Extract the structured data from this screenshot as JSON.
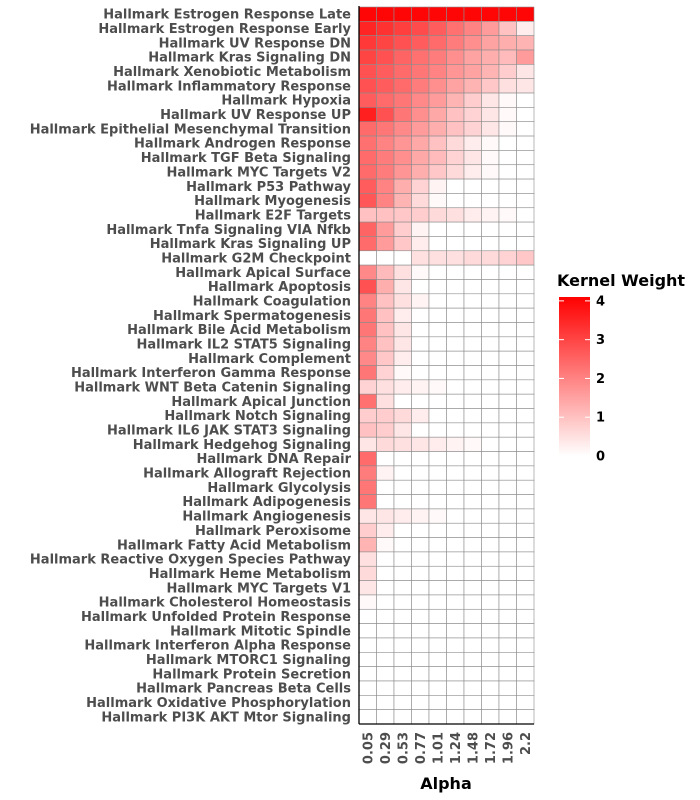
{
  "chart_data": {
    "type": "heatmap",
    "xlabel": "Alpha",
    "x": [
      "0.05",
      "0.29",
      "0.53",
      "0.77",
      "1.01",
      "1.24",
      "1.48",
      "1.72",
      "1.96",
      "2.2"
    ],
    "y": [
      "Hallmark Estrogen Response Late",
      "Hallmark Estrogen Response Early",
      "Hallmark UV Response DN",
      "Hallmark Kras Signaling DN",
      "Hallmark Xenobiotic Metabolism",
      "Hallmark Inflammatory Response",
      "Hallmark Hypoxia",
      "Hallmark UV Response UP",
      "Hallmark Epithelial Mesenchymal Transition",
      "Hallmark Androgen Response",
      "Hallmark TGF Beta Signaling",
      "Hallmark MYC Targets V2",
      "Hallmark P53 Pathway",
      "Hallmark Myogenesis",
      "Hallmark E2F Targets",
      "Hallmark Tnfa Signaling VIA Nfkb",
      "Hallmark Kras Signaling UP",
      "Hallmark G2M Checkpoint",
      "Hallmark Apical Surface",
      "Hallmark Apoptosis",
      "Hallmark Coagulation",
      "Hallmark Spermatogenesis",
      "Hallmark Bile Acid Metabolism",
      "Hallmark IL2 STAT5 Signaling",
      "Hallmark Complement",
      "Hallmark Interferon Gamma Response",
      "Hallmark WNT Beta Catenin Signaling",
      "Hallmark Apical Junction",
      "Hallmark Notch Signaling",
      "Hallmark IL6 JAK STAT3 Signaling",
      "Hallmark Hedgehog Signaling",
      "Hallmark DNA Repair",
      "Hallmark Allograft Rejection",
      "Hallmark Glycolysis",
      "Hallmark Adipogenesis",
      "Hallmark Angiogenesis",
      "Hallmark Peroxisome",
      "Hallmark Fatty Acid Metabolism",
      "Hallmark Reactive Oxygen Species Pathway",
      "Hallmark Heme Metabolism",
      "Hallmark MYC Targets V1",
      "Hallmark Cholesterol Homeostasis",
      "Hallmark Unfolded Protein Response",
      "Hallmark Mitotic Spindle",
      "Hallmark Interferon Alpha Response",
      "Hallmark MTORC1 Signaling",
      "Hallmark Protein Secretion",
      "Hallmark Pancreas Beta Cells",
      "Hallmark Oxidative Phosphorylation",
      "Hallmark PI3K AKT Mtor Signaling"
    ],
    "values": [
      [
        4.0,
        4.0,
        4.0,
        4.0,
        4.0,
        4.0,
        4.0,
        4.0,
        4.0,
        4.0
      ],
      [
        3.5,
        3.3,
        3.1,
        2.9,
        2.6,
        2.3,
        2.0,
        1.6,
        1.0,
        0.3
      ],
      [
        3.2,
        3.0,
        2.8,
        2.6,
        2.4,
        2.1,
        1.8,
        1.5,
        1.3,
        1.2
      ],
      [
        3.0,
        2.8,
        2.5,
        2.3,
        2.1,
        1.8,
        1.5,
        1.3,
        1.1,
        1.6
      ],
      [
        2.8,
        2.6,
        2.4,
        2.2,
        2.0,
        1.7,
        1.5,
        1.2,
        0.8,
        0.4
      ],
      [
        2.8,
        2.6,
        2.4,
        2.1,
        1.8,
        1.5,
        1.2,
        0.9,
        0.5,
        0.4
      ],
      [
        2.6,
        2.4,
        2.2,
        1.9,
        1.6,
        1.2,
        0.8,
        0.4,
        0.1,
        0.0
      ],
      [
        3.6,
        2.8,
        2.2,
        1.8,
        1.4,
        1.0,
        0.7,
        0.4,
        0.1,
        0.0
      ],
      [
        2.4,
        2.2,
        1.9,
        1.6,
        1.3,
        1.0,
        0.7,
        0.4,
        0.1,
        0.0
      ],
      [
        2.3,
        2.0,
        1.7,
        1.4,
        1.0,
        0.6,
        0.3,
        0.1,
        0.0,
        0.0
      ],
      [
        2.4,
        2.1,
        1.8,
        1.4,
        1.1,
        0.7,
        0.4,
        0.1,
        0.0,
        0.0
      ],
      [
        2.4,
        2.1,
        1.7,
        1.3,
        0.9,
        0.6,
        0.3,
        0.1,
        0.0,
        0.0
      ],
      [
        2.6,
        2.0,
        1.3,
        0.7,
        0.2,
        0.0,
        0.0,
        0.0,
        0.0,
        0.0
      ],
      [
        2.7,
        2.0,
        1.2,
        0.6,
        0.1,
        0.0,
        0.0,
        0.0,
        0.0,
        0.0
      ],
      [
        1.0,
        1.0,
        0.9,
        0.8,
        0.6,
        0.5,
        0.3,
        0.2,
        0.1,
        0.0
      ],
      [
        2.5,
        1.6,
        0.8,
        0.2,
        0.0,
        0.0,
        0.0,
        0.0,
        0.0,
        0.0
      ],
      [
        2.4,
        1.6,
        0.9,
        0.3,
        0.0,
        0.0,
        0.0,
        0.0,
        0.0,
        0.0
      ],
      [
        0.0,
        0.0,
        0.0,
        0.5,
        0.5,
        0.5,
        0.6,
        0.6,
        0.7,
        0.9
      ],
      [
        1.9,
        1.1,
        0.5,
        0.1,
        0.0,
        0.0,
        0.0,
        0.0,
        0.0,
        0.0
      ],
      [
        2.8,
        1.3,
        0.4,
        0.0,
        0.0,
        0.0,
        0.0,
        0.0,
        0.0,
        0.0
      ],
      [
        2.0,
        1.0,
        0.5,
        0.2,
        0.0,
        0.0,
        0.0,
        0.0,
        0.0,
        0.0
      ],
      [
        2.2,
        1.0,
        0.3,
        0.0,
        0.0,
        0.0,
        0.0,
        0.0,
        0.0,
        0.0
      ],
      [
        2.2,
        1.0,
        0.4,
        0.0,
        0.0,
        0.0,
        0.0,
        0.0,
        0.0,
        0.0
      ],
      [
        2.0,
        1.0,
        0.4,
        0.0,
        0.0,
        0.0,
        0.0,
        0.0,
        0.0,
        0.0
      ],
      [
        1.9,
        0.9,
        0.3,
        0.0,
        0.0,
        0.0,
        0.0,
        0.0,
        0.0,
        0.0
      ],
      [
        2.2,
        0.7,
        0.1,
        0.0,
        0.0,
        0.0,
        0.0,
        0.0,
        0.0,
        0.0
      ],
      [
        0.7,
        0.5,
        0.3,
        0.2,
        0.1,
        0.0,
        0.0,
        0.0,
        0.0,
        0.0
      ],
      [
        2.3,
        0.5,
        0.0,
        0.0,
        0.0,
        0.0,
        0.0,
        0.0,
        0.0,
        0.0
      ],
      [
        0.8,
        0.8,
        0.6,
        0.3,
        0.0,
        0.0,
        0.0,
        0.0,
        0.0,
        0.0
      ],
      [
        1.0,
        0.8,
        0.4,
        0.0,
        0.0,
        0.0,
        0.0,
        0.0,
        0.0,
        0.0
      ],
      [
        0.4,
        0.6,
        0.5,
        0.4,
        0.3,
        0.2,
        0.1,
        0.0,
        0.0,
        0.0
      ],
      [
        2.4,
        0.0,
        0.0,
        0.0,
        0.0,
        0.0,
        0.0,
        0.0,
        0.0,
        0.0
      ],
      [
        2.1,
        0.2,
        0.0,
        0.0,
        0.0,
        0.0,
        0.0,
        0.0,
        0.0,
        0.0
      ],
      [
        2.2,
        0.0,
        0.0,
        0.0,
        0.0,
        0.0,
        0.0,
        0.0,
        0.0,
        0.0
      ],
      [
        2.2,
        0.0,
        0.0,
        0.0,
        0.0,
        0.0,
        0.0,
        0.0,
        0.0,
        0.0
      ],
      [
        0.4,
        0.4,
        0.3,
        0.2,
        0.1,
        0.0,
        0.0,
        0.0,
        0.0,
        0.0
      ],
      [
        0.8,
        0.3,
        0.0,
        0.0,
        0.0,
        0.0,
        0.0,
        0.0,
        0.0,
        0.0
      ],
      [
        1.2,
        0.1,
        0.0,
        0.0,
        0.0,
        0.0,
        0.0,
        0.0,
        0.0,
        0.0
      ],
      [
        0.5,
        0.0,
        0.0,
        0.0,
        0.0,
        0.0,
        0.0,
        0.0,
        0.0,
        0.0
      ],
      [
        0.6,
        0.0,
        0.0,
        0.0,
        0.0,
        0.0,
        0.0,
        0.0,
        0.0,
        0.0
      ],
      [
        0.4,
        0.0,
        0.0,
        0.0,
        0.0,
        0.0,
        0.0,
        0.0,
        0.0,
        0.0
      ],
      [
        0.1,
        0.0,
        0.0,
        0.0,
        0.0,
        0.0,
        0.0,
        0.0,
        0.0,
        0.0
      ],
      [
        0.0,
        0.0,
        0.0,
        0.0,
        0.0,
        0.0,
        0.0,
        0.0,
        0.0,
        0.0
      ],
      [
        0.0,
        0.0,
        0.0,
        0.0,
        0.0,
        0.0,
        0.0,
        0.0,
        0.0,
        0.0
      ],
      [
        0.0,
        0.0,
        0.0,
        0.0,
        0.0,
        0.0,
        0.0,
        0.0,
        0.0,
        0.0
      ],
      [
        0.0,
        0.0,
        0.0,
        0.0,
        0.0,
        0.0,
        0.0,
        0.0,
        0.0,
        0.0
      ],
      [
        0.0,
        0.0,
        0.0,
        0.0,
        0.0,
        0.0,
        0.0,
        0.0,
        0.0,
        0.0
      ],
      [
        0.0,
        0.0,
        0.0,
        0.0,
        0.0,
        0.0,
        0.0,
        0.0,
        0.0,
        0.0
      ],
      [
        0.0,
        0.0,
        0.0,
        0.0,
        0.0,
        0.0,
        0.0,
        0.0,
        0.0,
        0.0
      ],
      [
        0.0,
        0.0,
        0.0,
        0.0,
        0.0,
        0.0,
        0.0,
        0.0,
        0.0,
        0.0
      ]
    ],
    "colorbar": {
      "title": "Kernel Weight",
      "range": [
        0,
        4.1
      ],
      "ticks": [
        0,
        1,
        2,
        3,
        4
      ],
      "low_color": "#ffffff",
      "high_color": "#ff0000"
    },
    "legend_position": "right",
    "grid": false
  }
}
